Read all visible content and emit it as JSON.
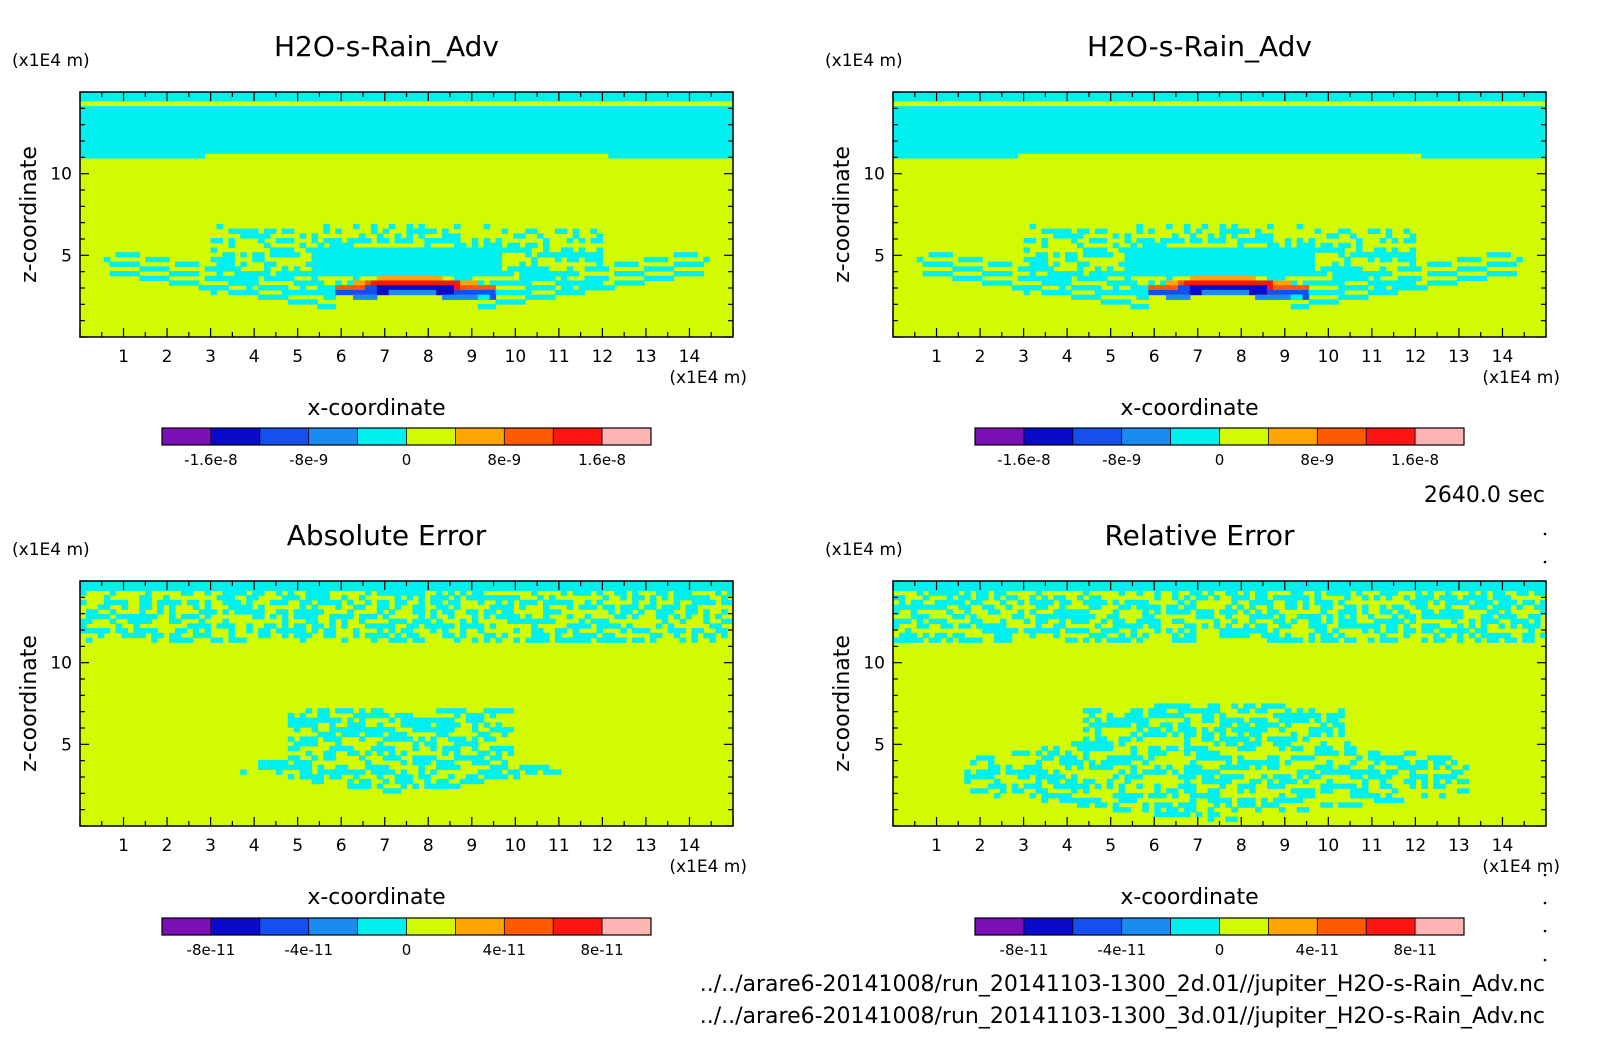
{
  "figure": {
    "time_label": "2640.0 sec",
    "source_files": [
      "../../arare6-20141008/run_20141103-1300_2d.01//jupiter_H2O-s-Rain_Adv.nc",
      "../../arare6-20141008/run_20141103-1300_3d.01//jupiter_H2O-s-Rain_Adv.nc"
    ]
  },
  "colors": {
    "palette": [
      "#7b0fb4",
      "#0a0aca",
      "#1450f0",
      "#1a8cf0",
      "#00f0f0",
      "#d2fa00",
      "#ffa500",
      "#ff5a00",
      "#ff1414",
      "#ffb4b4"
    ],
    "background_level": "#d2fa00",
    "near_zero_level": "#00f0f0"
  },
  "chart_data": [
    {
      "type": "heatmap",
      "title": "H2O-s-Rain_Adv",
      "xlabel": "x-coordinate",
      "ylabel": "z-coordinate",
      "x_unit": "(x1E4 m)",
      "y_unit": "(x1E4 m)",
      "xlim": [
        0,
        15
      ],
      "ylim": [
        0,
        15
      ],
      "x_ticks": [
        "1",
        "2",
        "3",
        "4",
        "5",
        "6",
        "7",
        "8",
        "9",
        "10",
        "11",
        "12",
        "13",
        "14"
      ],
      "y_ticks": [
        "5",
        "10"
      ],
      "colorbar": {
        "levels": [
          -2e-08,
          -1.6e-08,
          -1.2e-08,
          -8e-09,
          -4e-09,
          0,
          4e-09,
          8e-09,
          1.2e-08,
          1.6e-08,
          2e-08
        ],
        "labels": [
          "-1.6e-8",
          "-8e-9",
          "0",
          "8e-9",
          "1.6e-8"
        ]
      },
      "pattern": "advection"
    },
    {
      "type": "heatmap",
      "title": "H2O-s-Rain_Adv",
      "xlabel": "x-coordinate",
      "ylabel": "z-coordinate",
      "x_unit": "(x1E4 m)",
      "y_unit": "(x1E4 m)",
      "xlim": [
        0,
        15
      ],
      "ylim": [
        0,
        15
      ],
      "x_ticks": [
        "1",
        "2",
        "3",
        "4",
        "5",
        "6",
        "7",
        "8",
        "9",
        "10",
        "11",
        "12",
        "13",
        "14"
      ],
      "y_ticks": [
        "5",
        "10"
      ],
      "colorbar": {
        "levels": [
          -2e-08,
          -1.6e-08,
          -1.2e-08,
          -8e-09,
          -4e-09,
          0,
          4e-09,
          8e-09,
          1.2e-08,
          1.6e-08,
          2e-08
        ],
        "labels": [
          "-1.6e-8",
          "-8e-9",
          "0",
          "8e-9",
          "1.6e-8"
        ]
      },
      "pattern": "advection"
    },
    {
      "type": "heatmap",
      "title": "Absolute Error",
      "xlabel": "x-coordinate",
      "ylabel": "z-coordinate",
      "x_unit": "(x1E4 m)",
      "y_unit": "(x1E4 m)",
      "xlim": [
        0,
        15
      ],
      "ylim": [
        0,
        15
      ],
      "x_ticks": [
        "1",
        "2",
        "3",
        "4",
        "5",
        "6",
        "7",
        "8",
        "9",
        "10",
        "11",
        "12",
        "13",
        "14"
      ],
      "y_ticks": [
        "5",
        "10"
      ],
      "colorbar": {
        "levels": [
          -1e-10,
          -8e-11,
          -6e-11,
          -4e-11,
          -2e-11,
          0,
          2e-11,
          4e-11,
          6e-11,
          8e-11,
          1e-10
        ],
        "labels": [
          "-8e-11",
          "-4e-11",
          "0",
          "4e-11",
          "8e-11"
        ]
      },
      "pattern": "abs_error"
    },
    {
      "type": "heatmap",
      "title": "Relative Error",
      "xlabel": "x-coordinate",
      "ylabel": "z-coordinate",
      "x_unit": "(x1E4 m)",
      "y_unit": "(x1E4 m)",
      "xlim": [
        0,
        15
      ],
      "ylim": [
        0,
        15
      ],
      "x_ticks": [
        "1",
        "2",
        "3",
        "4",
        "5",
        "6",
        "7",
        "8",
        "9",
        "10",
        "11",
        "12",
        "13",
        "14"
      ],
      "y_ticks": [
        "5",
        "10"
      ],
      "colorbar": {
        "levels": [
          -1e-10,
          -8e-11,
          -6e-11,
          -4e-11,
          -2e-11,
          0,
          2e-11,
          4e-11,
          6e-11,
          8e-11,
          1e-10
        ],
        "labels": [
          "-8e-11",
          "-4e-11",
          "0",
          "4e-11",
          "8e-11"
        ]
      },
      "pattern": "rel_error"
    }
  ]
}
